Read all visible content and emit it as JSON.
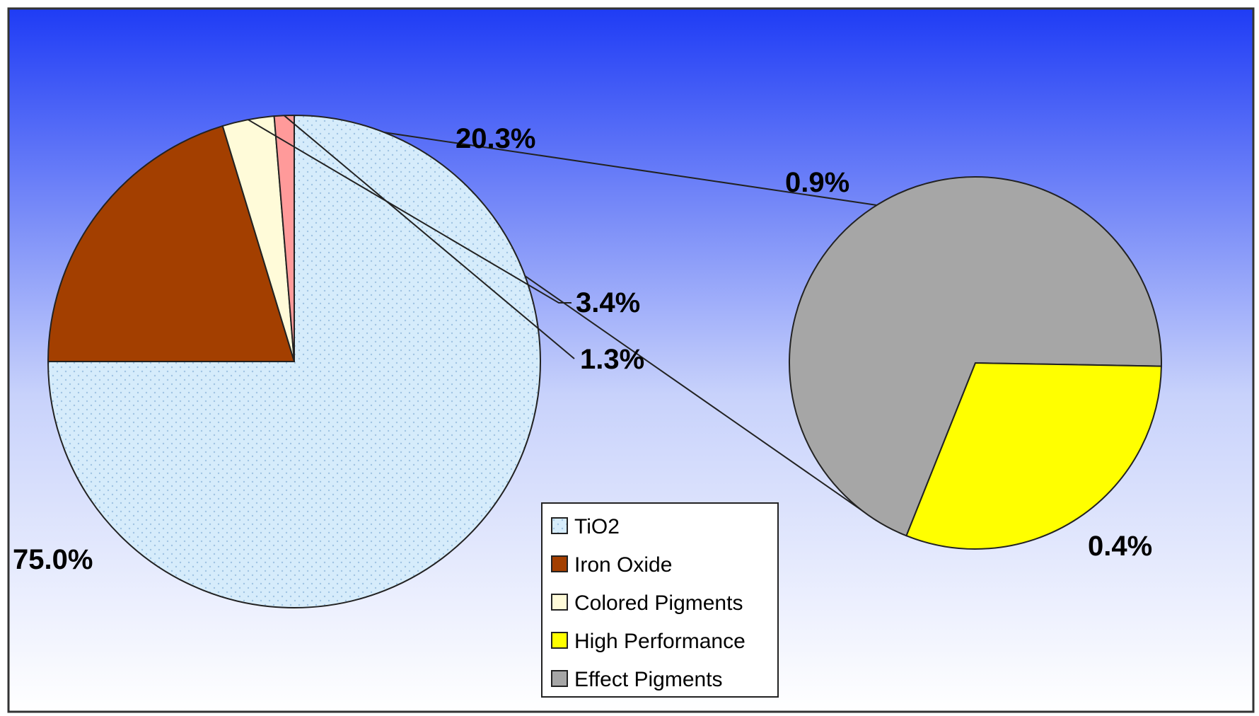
{
  "chart_data": {
    "type": "pie",
    "subtype": "pie-of-pie",
    "title": "",
    "main_pie": {
      "slices": [
        {
          "key": "tio2",
          "name": "TiO2",
          "value": 75.0,
          "label": "75.0%",
          "color": "#d6ecfb",
          "pattern": "dotted"
        },
        {
          "key": "iron",
          "name": "Iron Oxide",
          "value": 20.3,
          "label": "20.3%",
          "color": "#a33f00"
        },
        {
          "key": "colored",
          "name": "Colored Pigments",
          "value": 3.4,
          "label": "3.4%",
          "color": "#fffbd9"
        },
        {
          "key": "other",
          "name": "",
          "value": 1.3,
          "label": "1.3%",
          "color": "#ff9a9a"
        }
      ]
    },
    "secondary_pie": {
      "breakdown_of": "1.3%",
      "slices": [
        {
          "key": "effect",
          "name": "Effect Pigments",
          "value": 0.9,
          "label": "0.9%",
          "color": "#a6a6a6"
        },
        {
          "key": "highperf",
          "name": "High Performance",
          "value": 0.4,
          "label": "0.4%",
          "color": "#ffff00"
        }
      ]
    },
    "legend": {
      "placement": "bottom-center",
      "entries": [
        {
          "label": "TiO2",
          "color": "#d6ecfb"
        },
        {
          "label": "Iron Oxide",
          "color": "#a33f00"
        },
        {
          "label": "Colored Pigments",
          "color": "#fffbd9"
        },
        {
          "label": "High Performance",
          "color": "#ffff00"
        },
        {
          "label": "Effect Pigments",
          "color": "#a6a6a6"
        }
      ]
    },
    "background": {
      "top": "#1f3cf5",
      "bottom": "#ffffff"
    }
  }
}
